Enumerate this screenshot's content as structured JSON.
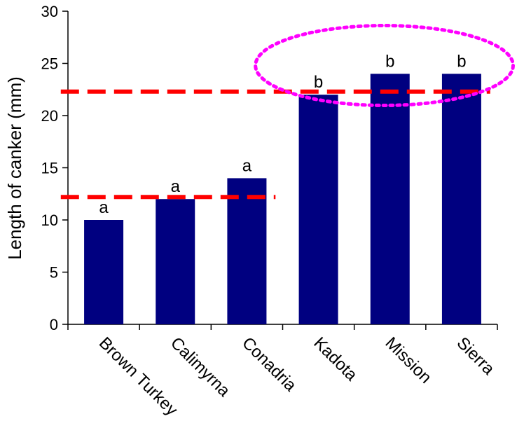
{
  "chart_data": {
    "type": "bar",
    "categories": [
      "Brown Turkey",
      "Calimyrna",
      "Conadria",
      "Kadota",
      "Mission",
      "Sierra"
    ],
    "values": [
      10,
      12,
      14,
      22,
      24,
      24
    ],
    "significance_letters": [
      "a",
      "a",
      "a",
      "b",
      "b",
      "b"
    ],
    "title": "",
    "xlabel": "",
    "ylabel": "Length of canker (mm)",
    "ylim": [
      0,
      30
    ],
    "yticks": [
      0,
      5,
      10,
      15,
      20,
      25,
      30
    ],
    "grid": false,
    "legend": "none",
    "bar_color": "#000080",
    "reference_lines": [
      {
        "y": 12.2,
        "from_category": 0,
        "to_category": 2,
        "color": "#ff0000",
        "style": "dashed"
      },
      {
        "y": 22.3,
        "from_category": 0,
        "to_category": 5,
        "color": "#ff0000",
        "style": "dashed"
      }
    ],
    "highlight": {
      "categories": [
        3,
        4,
        5
      ],
      "shape": "ellipse",
      "color": "#ff00ff",
      "style": "dotted"
    }
  }
}
